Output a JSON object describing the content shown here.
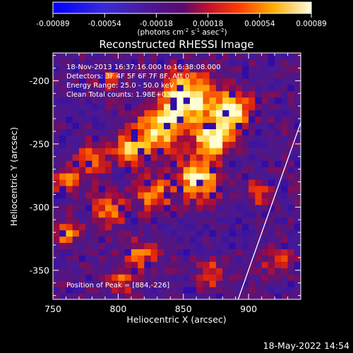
{
  "window": {
    "footer_date": "18-May-2022 14:54"
  },
  "colorbar": {
    "ticks": [
      "-0.00089",
      "-0.00054",
      "-0.00018",
      "0.00018",
      "0.00054",
      "0.00089"
    ],
    "unit_label_prefix": "(photons cm",
    "unit_label_exp1": "-2",
    "unit_label_mid": " s",
    "unit_label_exp2": "-1",
    "unit_label_end": " asec",
    "unit_label_exp3": "-2",
    "unit_label_close": ")",
    "range": [
      -0.00089,
      0.00089
    ],
    "colors": [
      "#0000ff",
      "#4c1b9c",
      "#4b0082",
      "#ff3c00",
      "#ffaa00",
      "#ffffe0"
    ]
  },
  "chart_data": {
    "type": "heatmap",
    "title": "Reconstructed RHESSI Image",
    "xlabel": "Heliocentric X (arcsec)",
    "ylabel": "Heliocentric Y (arcsec)",
    "xlim": [
      750,
      940
    ],
    "ylim": [
      -373,
      -178
    ],
    "xticks": [
      750,
      800,
      850,
      900
    ],
    "yticks": [
      -200,
      -250,
      -300,
      -350
    ],
    "info_lines": [
      "18-Nov-2013 16:37:16.000 to 16:38:08.000",
      "Detectors: 3F 4F 5F 6F 7F 8F, Att 0",
      "Energy Range: 25.0 - 50.0 keV",
      "Clean    Total counts: 1.98E+03"
    ],
    "peak_label": "Position of Peak = [884,-226]",
    "peak": [
      884,
      -226
    ],
    "limb_line": [
      [
        892,
        -373
      ],
      [
        940,
        -233
      ]
    ],
    "blobs": [
      {
        "x": 850,
        "y": -215,
        "r": 18,
        "v": 1.0
      },
      {
        "x": 884,
        "y": -226,
        "r": 14,
        "v": 1.0
      },
      {
        "x": 830,
        "y": -240,
        "r": 16,
        "v": 0.85
      },
      {
        "x": 870,
        "y": -248,
        "r": 14,
        "v": 0.9
      },
      {
        "x": 808,
        "y": -255,
        "r": 12,
        "v": 0.7
      },
      {
        "x": 778,
        "y": -265,
        "r": 11,
        "v": 0.7
      },
      {
        "x": 760,
        "y": -282,
        "r": 10,
        "v": 0.6
      },
      {
        "x": 858,
        "y": -280,
        "r": 15,
        "v": 0.85
      },
      {
        "x": 825,
        "y": -292,
        "r": 12,
        "v": 0.65
      },
      {
        "x": 790,
        "y": -305,
        "r": 12,
        "v": 0.6
      },
      {
        "x": 757,
        "y": -322,
        "r": 9,
        "v": 0.75
      },
      {
        "x": 815,
        "y": -340,
        "r": 11,
        "v": 0.55
      },
      {
        "x": 870,
        "y": -355,
        "r": 10,
        "v": 0.45
      },
      {
        "x": 905,
        "y": -290,
        "r": 9,
        "v": 0.5
      },
      {
        "x": 790,
        "y": -200,
        "r": 9,
        "v": 0.45
      },
      {
        "x": 920,
        "y": -345,
        "r": 10,
        "v": 0.45
      },
      {
        "x": 800,
        "y": -360,
        "r": 10,
        "v": 0.5
      }
    ]
  }
}
